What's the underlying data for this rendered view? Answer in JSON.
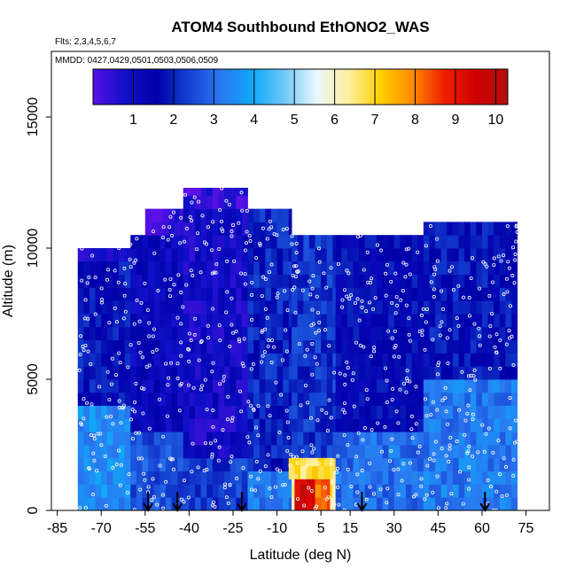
{
  "chart_data": {
    "type": "heatmap",
    "title": "ATOM4 Southbound EthONO2_WAS",
    "flights_label": "Flts: 2,3,4,5,6,7",
    "dates_label": "MMDD: 0427,0429,0501,0503,0506,0509",
    "xlabel": "Latitude (deg N)",
    "ylabel": "Altitude (m)",
    "xlim": [
      -87,
      83
    ],
    "ylim": [
      0,
      17500
    ],
    "x_ticks": [
      -85,
      -70,
      -55,
      -40,
      -25,
      -10,
      5,
      15,
      30,
      45,
      60,
      75
    ],
    "y_ticks": [
      0,
      5000,
      10000,
      15000
    ],
    "colorbar": {
      "range": [
        0,
        10.3
      ],
      "ticks": [
        1,
        2,
        3,
        4,
        5,
        6,
        7,
        8,
        9,
        10
      ],
      "colors": [
        "#5a10e6",
        "#1010c8",
        "#0000a8",
        "#1440d0",
        "#2a78f0",
        "#10a8f8",
        "#70c8f8",
        "#e8f8ff",
        "#fff0a0",
        "#ffd000",
        "#ff8c00",
        "#ee2000",
        "#d00000",
        "#b01010"
      ]
    },
    "marker_latitudes": [
      -54,
      -44,
      -22,
      19,
      61
    ],
    "regions": [
      {
        "lat": [
          -78,
          -60
        ],
        "alt": [
          0,
          4000
        ],
        "value": 3.5
      },
      {
        "lat": [
          -78,
          -60
        ],
        "alt": [
          4000,
          9500
        ],
        "value": 1.8
      },
      {
        "lat": [
          -78,
          -60
        ],
        "alt": [
          9500,
          10000
        ],
        "value": 0.5
      },
      {
        "lat": [
          -60,
          -42
        ],
        "alt": [
          0,
          3000
        ],
        "value": 2.6
      },
      {
        "lat": [
          -60,
          -42
        ],
        "alt": [
          3000,
          10500
        ],
        "value": 1.2
      },
      {
        "lat": [
          -55,
          -42
        ],
        "alt": [
          10500,
          11500
        ],
        "value": 0.4
      },
      {
        "lat": [
          -42,
          -20
        ],
        "alt": [
          0,
          2000
        ],
        "value": 2.3
      },
      {
        "lat": [
          -42,
          -20
        ],
        "alt": [
          2000,
          11500
        ],
        "value": 0.9
      },
      {
        "lat": [
          -42,
          -20
        ],
        "alt": [
          11500,
          12300
        ],
        "value": 0.4
      },
      {
        "lat": [
          -20,
          -5
        ],
        "alt": [
          0,
          1500
        ],
        "value": 3.2
      },
      {
        "lat": [
          -20,
          -5
        ],
        "alt": [
          1500,
          11500
        ],
        "value": 2.0
      },
      {
        "lat": [
          -5,
          10
        ],
        "alt": [
          0,
          2000
        ],
        "value": 6.5
      },
      {
        "lat": [
          -5,
          10
        ],
        "alt": [
          2000,
          10500
        ],
        "value": 2.2
      },
      {
        "lat": [
          10,
          40
        ],
        "alt": [
          0,
          3000
        ],
        "value": 3.0
      },
      {
        "lat": [
          10,
          40
        ],
        "alt": [
          3000,
          10500
        ],
        "value": 1.6
      },
      {
        "lat": [
          40,
          72
        ],
        "alt": [
          0,
          5000
        ],
        "value": 3.2
      },
      {
        "lat": [
          40,
          72
        ],
        "alt": [
          5000,
          11000
        ],
        "value": 1.8
      }
    ],
    "hotspots": [
      {
        "lat": [
          -4,
          3
        ],
        "alt": [
          0,
          1200
        ],
        "value": 9.5
      },
      {
        "lat": [
          3,
          8
        ],
        "alt": [
          0,
          1800
        ],
        "value": 8.2
      },
      {
        "lat": [
          -6,
          9
        ],
        "alt": [
          1200,
          2000
        ],
        "value": 6.8
      }
    ]
  }
}
